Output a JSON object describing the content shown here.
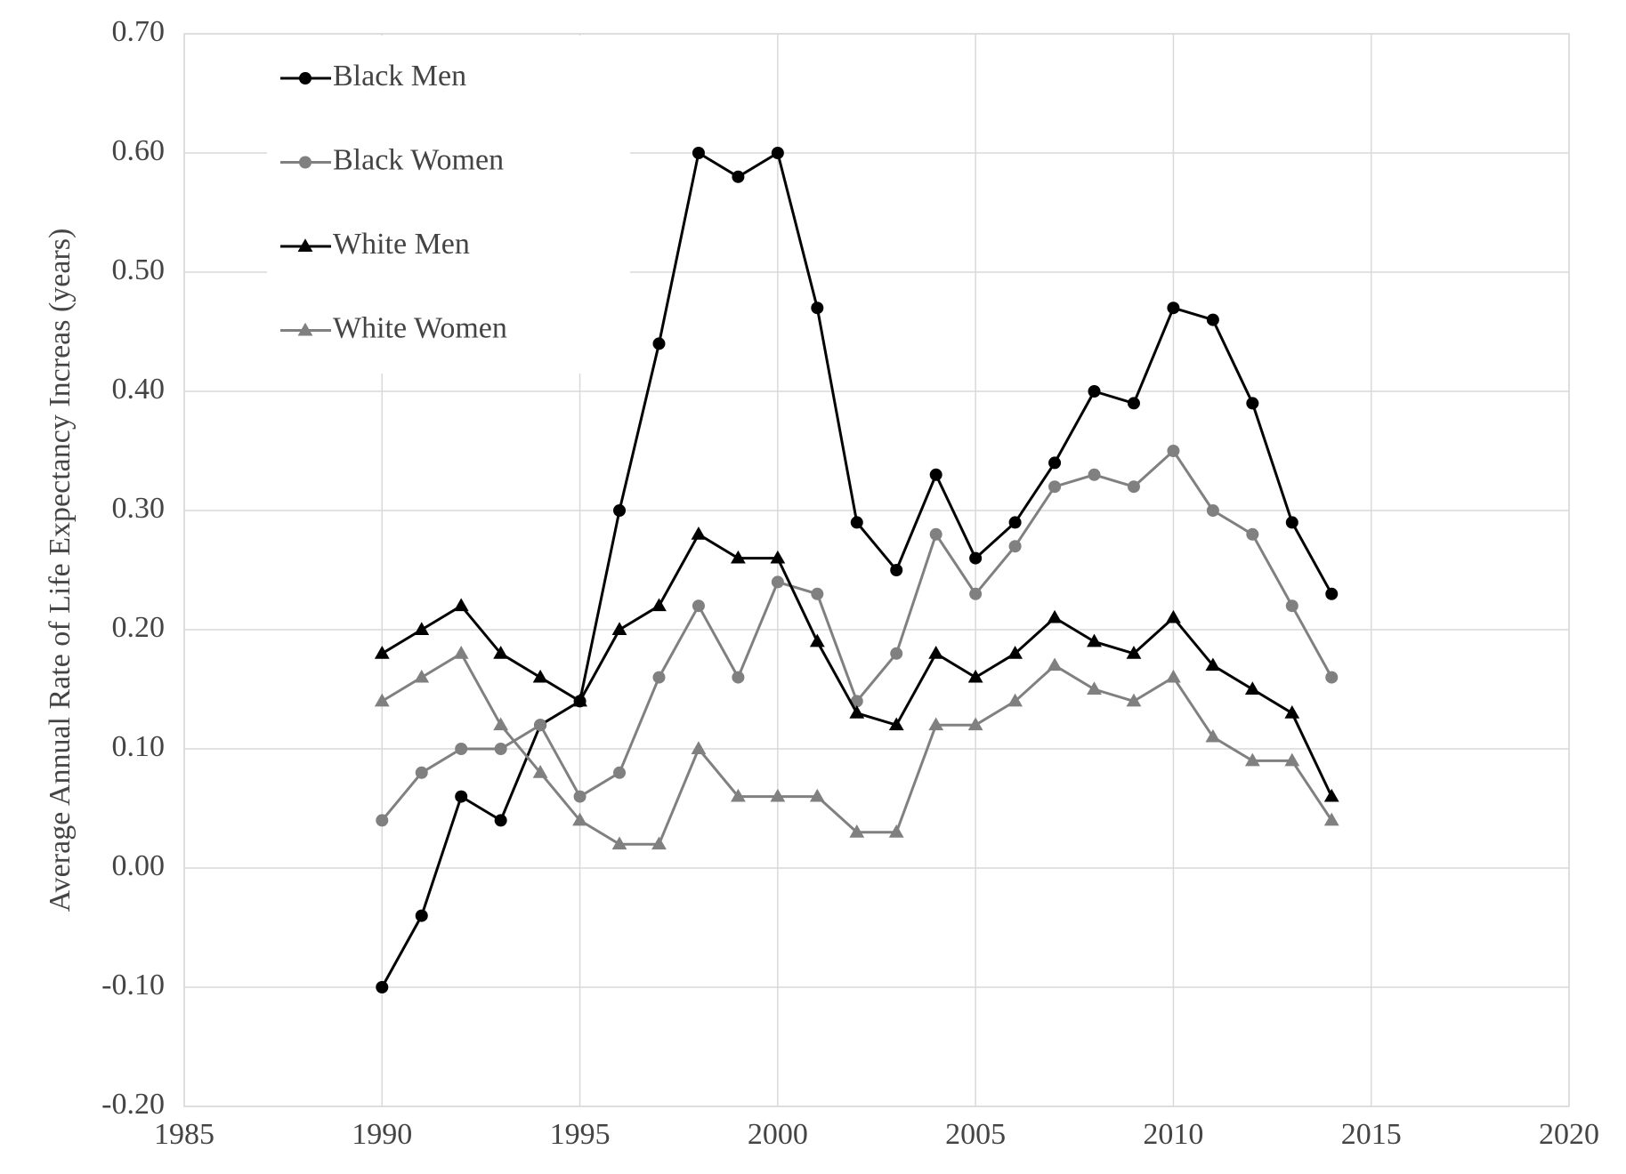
{
  "chart_data": {
    "type": "line",
    "y_label": "Average Annual Rate of Life Expectancy Increas (years)",
    "x": [
      1990,
      1991,
      1992,
      1993,
      1994,
      1995,
      1996,
      1997,
      1998,
      1999,
      2000,
      2001,
      2002,
      2003,
      2004,
      2005,
      2006,
      2007,
      2008,
      2009,
      2010,
      2011,
      2012,
      2013,
      2014
    ],
    "series": [
      {
        "name": "Black Men",
        "color": "#000000",
        "marker": "circle",
        "values": [
          -0.1,
          -0.04,
          0.06,
          0.04,
          0.12,
          0.14,
          0.3,
          0.44,
          0.6,
          0.58,
          0.6,
          0.47,
          0.29,
          0.25,
          0.33,
          0.26,
          0.29,
          0.34,
          0.4,
          0.39,
          0.47,
          0.46,
          0.39,
          0.29,
          0.23
        ]
      },
      {
        "name": "Black Women",
        "color": "#808080",
        "marker": "circle",
        "values": [
          0.04,
          0.08,
          0.1,
          0.1,
          0.12,
          0.06,
          0.08,
          0.16,
          0.22,
          0.16,
          0.24,
          0.23,
          0.14,
          0.18,
          0.28,
          0.23,
          0.27,
          0.32,
          0.33,
          0.32,
          0.35,
          0.3,
          0.28,
          0.22,
          0.16
        ]
      },
      {
        "name": "White Men",
        "color": "#000000",
        "marker": "triangle",
        "values": [
          0.18,
          0.2,
          0.22,
          0.18,
          0.16,
          0.14,
          0.2,
          0.22,
          0.28,
          0.26,
          0.26,
          0.19,
          0.13,
          0.12,
          0.18,
          0.16,
          0.18,
          0.21,
          0.19,
          0.18,
          0.21,
          0.17,
          0.15,
          0.13,
          0.06
        ]
      },
      {
        "name": "White Women",
        "color": "#808080",
        "marker": "triangle",
        "values": [
          0.14,
          0.16,
          0.18,
          0.12,
          0.08,
          0.04,
          0.02,
          0.02,
          0.1,
          0.06,
          0.06,
          0.06,
          0.03,
          0.03,
          0.12,
          0.12,
          0.14,
          0.17,
          0.15,
          0.14,
          0.16,
          0.11,
          0.09,
          0.09,
          0.04
        ]
      }
    ],
    "xlim": [
      1985,
      2020
    ],
    "xticks": [
      1985,
      1990,
      1995,
      2000,
      2005,
      2010,
      2015,
      2020
    ],
    "ylim": [
      -0.2,
      0.7
    ],
    "yticks": [
      {
        "value": -0.2,
        "label": "-0.20"
      },
      {
        "value": -0.1,
        "label": "-0.10"
      },
      {
        "value": 0,
        "label": "0.00"
      },
      {
        "value": 0.1,
        "label": "0.10"
      },
      {
        "value": 0.2,
        "label": "0.20"
      },
      {
        "value": 0.3,
        "label": "0.30"
      },
      {
        "value": 0.4,
        "label": "0.40"
      },
      {
        "value": 0.5,
        "label": "0.50"
      },
      {
        "value": 0.6,
        "label": "0.60"
      },
      {
        "value": 0.7,
        "label": "0.70"
      }
    ],
    "grid": true,
    "legend": "upper left"
  }
}
